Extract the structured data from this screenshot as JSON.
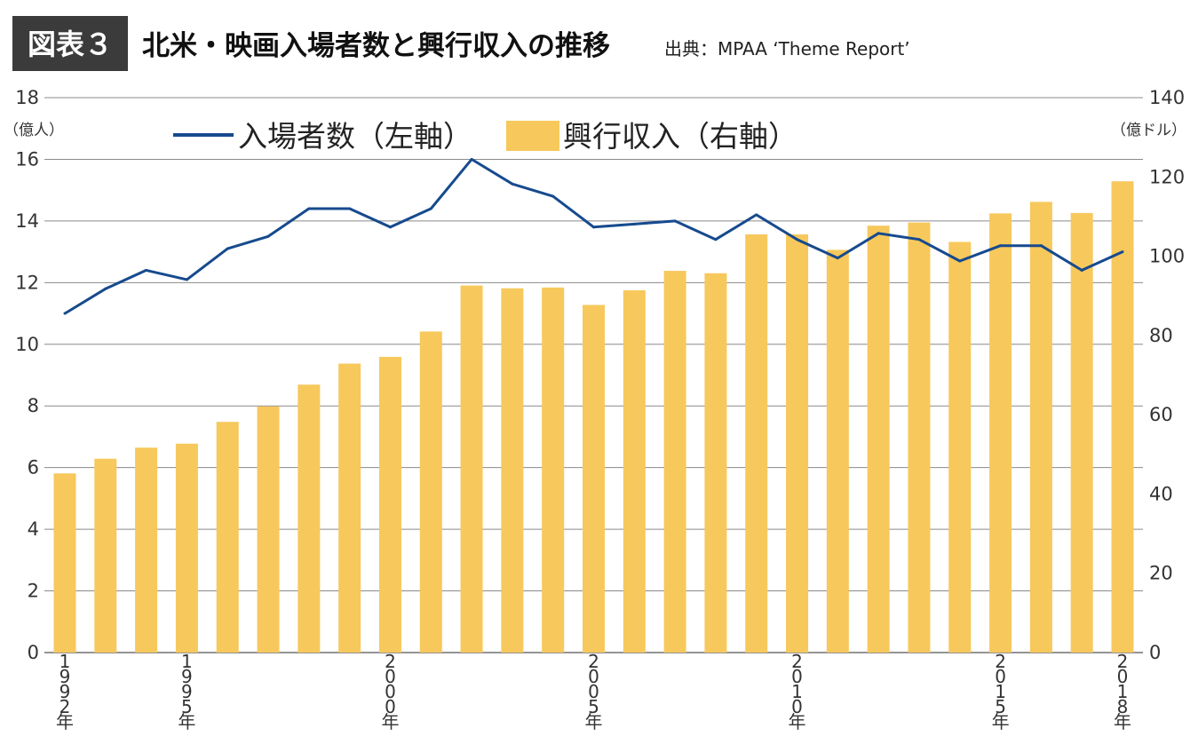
{
  "figure": {
    "label": "図表３",
    "title": "北米・映画入場者数と興行収入の推移",
    "source": "出典：MPAA ‘Theme Report’"
  },
  "axes": {
    "left_unit": "（億人）",
    "right_unit": "（億ドル）"
  },
  "legend": {
    "line_label": "入場者数（左軸）",
    "bar_label": "興行収入（右軸）"
  },
  "colors": {
    "bar": "#f7c85c",
    "line": "#164a8e",
    "grid": "#8a8a8a"
  },
  "chart_data": {
    "type": "bar",
    "years": [
      1992,
      1993,
      1994,
      1995,
      1996,
      1997,
      1998,
      1999,
      2000,
      2001,
      2002,
      2003,
      2004,
      2005,
      2006,
      2007,
      2008,
      2009,
      2010,
      2011,
      2012,
      2013,
      2014,
      2015,
      2016,
      2017,
      2018
    ],
    "x_tick_labels": [
      {
        "year": 1992,
        "label": "1992年"
      },
      {
        "year": 1995,
        "label": "1995年"
      },
      {
        "year": 2000,
        "label": "2000年"
      },
      {
        "year": 2005,
        "label": "2005年"
      },
      {
        "year": 2010,
        "label": "2010年"
      },
      {
        "year": 2015,
        "label": "2015年"
      },
      {
        "year": 2018,
        "label": "2018年"
      }
    ],
    "left_axis": {
      "ylim": [
        0,
        18
      ],
      "ticks": [
        0,
        2,
        4,
        6,
        8,
        10,
        12,
        14,
        16,
        18
      ]
    },
    "right_axis": {
      "ylim": [
        0,
        140
      ],
      "ticks": [
        0,
        20,
        40,
        60,
        80,
        100,
        120,
        140
      ]
    },
    "series": [
      {
        "name": "興行収入（右軸）",
        "type": "bar",
        "axis": "right",
        "values": [
          45.2,
          48.9,
          51.7,
          52.7,
          58.2,
          62.1,
          67.6,
          72.9,
          74.6,
          81.0,
          92.6,
          91.9,
          92.1,
          87.7,
          91.4,
          96.3,
          95.7,
          105.5,
          105.5,
          101.6,
          107.7,
          108.5,
          103.6,
          110.8,
          113.7,
          110.9,
          118.9
        ]
      },
      {
        "name": "入場者数（左軸）",
        "type": "line",
        "axis": "left",
        "values": [
          11.0,
          11.8,
          12.4,
          12.1,
          13.1,
          13.5,
          14.4,
          14.4,
          13.8,
          14.4,
          16.0,
          15.2,
          14.8,
          13.8,
          13.9,
          14.0,
          13.4,
          14.2,
          13.4,
          12.8,
          13.6,
          13.4,
          12.7,
          13.2,
          13.2,
          12.4,
          13.0
        ]
      }
    ]
  }
}
